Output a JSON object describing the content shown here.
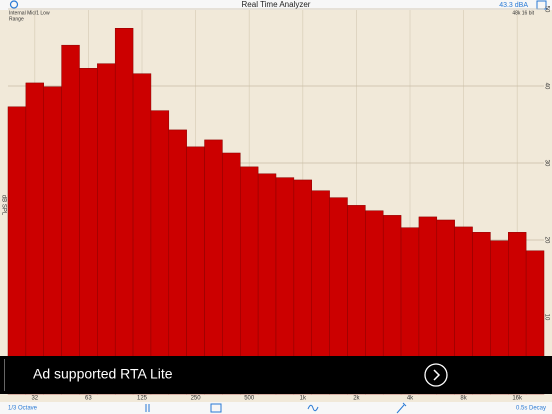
{
  "header": {
    "title": "Real Time Analyzer",
    "level": "43.3 dBA"
  },
  "chart_data": {
    "type": "bar",
    "info_left": [
      "Internal Mic/1 Low",
      "Range"
    ],
    "info_right": "48k 16 bit",
    "y_label": "dB SPL",
    "categories": [
      null,
      "32",
      null,
      null,
      "63",
      null,
      null,
      "125",
      null,
      null,
      "250",
      null,
      null,
      "500",
      null,
      null,
      "1k",
      null,
      null,
      "2k",
      null,
      null,
      "4k",
      null,
      null,
      "8k",
      null,
      null,
      "16k",
      null
    ],
    "values": [
      37.3,
      40.4,
      39.9,
      45.3,
      42.3,
      42.9,
      47.5,
      41.6,
      36.8,
      34.3,
      32.1,
      33.0,
      31.3,
      29.5,
      28.6,
      28.1,
      27.8,
      26.4,
      25.5,
      24.5,
      23.8,
      23.2,
      21.6,
      23.0,
      22.6,
      21.7,
      21.0,
      19.9,
      21.0,
      18.6
    ],
    "color": "#cc0000",
    "ylim": [
      0,
      50
    ],
    "yticks": [
      10,
      20,
      30,
      40,
      50
    ],
    "grid": true
  },
  "ad": {
    "text": "Ad supported RTA Lite"
  },
  "toolbar": {
    "left": "1/3 Octave",
    "right": "0.5s Decay"
  }
}
